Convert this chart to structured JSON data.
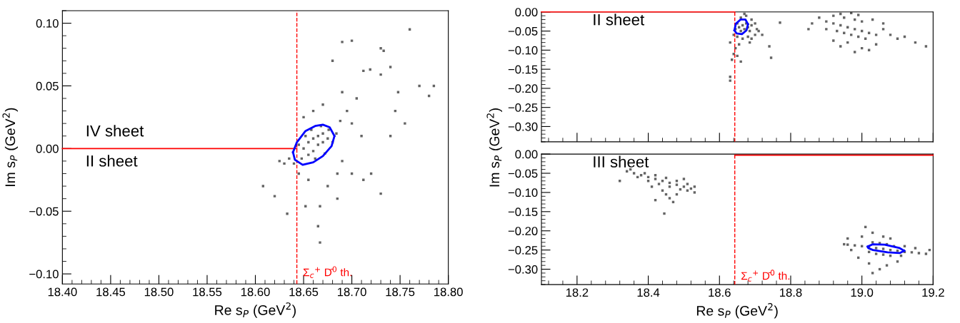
{
  "chart_data": [
    {
      "type": "scatter",
      "xlabel": "Re s$_{P}$ (GeV$^{2}$)",
      "ylabel": "Im s$_{P}$ (GeV$^{2}$)",
      "xlim": [
        18.4,
        18.8
      ],
      "ylim": [
        -0.108,
        0.11
      ],
      "xticks": [
        {
          "value": 18.4,
          "label": "18.40"
        },
        {
          "value": 18.45,
          "label": "18.45"
        },
        {
          "value": 18.5,
          "label": "18.50"
        },
        {
          "value": 18.55,
          "label": "18.55"
        },
        {
          "value": 18.6,
          "label": "18.60"
        },
        {
          "value": 18.65,
          "label": "18.65"
        },
        {
          "value": 18.7,
          "label": "18.70"
        },
        {
          "value": 18.75,
          "label": "18.75"
        },
        {
          "value": 18.8,
          "label": "18.80"
        }
      ],
      "yticks": [
        {
          "value": -0.1,
          "label": "−0.10"
        },
        {
          "value": -0.05,
          "label": "−0.05"
        },
        {
          "value": 0.0,
          "label": "0.00"
        },
        {
          "value": 0.05,
          "label": "0.05"
        },
        {
          "value": 0.1,
          "label": "0.10"
        }
      ],
      "ref_lines": [
        {
          "axis": "x",
          "value": 18.643,
          "label": "Σ$_{c}$$^{+}$ D̄$^{0}$ th.",
          "color": "#ff0000",
          "line_style": "dashed"
        }
      ],
      "annotations": [
        "IV sheet",
        "II sheet"
      ],
      "series": [
        {
          "marker": "square",
          "color": "#646464",
          "x": [
            18.65,
            18.655,
            18.66,
            18.665,
            18.67,
            18.655,
            18.66,
            18.665,
            18.67,
            18.675,
            18.648,
            18.652,
            18.658,
            18.668,
            18.676,
            18.68,
            18.645,
            18.662,
            18.672,
            18.684,
            18.64,
            18.635,
            18.688,
            18.695,
            18.7,
            18.69,
            18.685,
            18.66,
            18.67,
            18.65,
            18.645,
            18.655,
            18.675,
            18.705,
            18.71,
            18.7,
            18.63,
            18.625,
            18.608,
            18.62,
            18.633,
            18.652,
            18.667,
            18.685,
            18.712,
            18.72,
            18.73,
            18.665,
            18.667,
            18.69,
            18.712,
            18.719,
            18.73,
            18.74,
            18.76,
            18.748,
            18.77,
            18.785,
            18.78,
            18.69,
            18.7,
            18.73,
            18.733,
            18.68,
            18.745,
            18.755,
            18.74
          ],
          "values": [
            0.0,
            0.005,
            0.008,
            0.01,
            0.012,
            -0.005,
            -0.002,
            0.003,
            0.005,
            0.008,
            -0.008,
            0.01,
            0.015,
            0.018,
            0.015,
            0.005,
            0.003,
            -0.008,
            -0.004,
            0.012,
            -0.012,
            -0.008,
            0.022,
            0.03,
            0.02,
            -0.01,
            -0.02,
            0.03,
            0.035,
            0.025,
            -0.02,
            -0.025,
            -0.03,
            0.04,
            0.01,
            -0.02,
            -0.012,
            -0.01,
            -0.03,
            -0.038,
            -0.052,
            -0.046,
            -0.046,
            -0.04,
            -0.025,
            -0.02,
            -0.036,
            -0.062,
            -0.075,
            0.045,
            0.062,
            0.063,
            0.059,
            0.065,
            0.095,
            0.045,
            0.05,
            0.05,
            0.042,
            0.085,
            0.086,
            0.08,
            0.078,
            0.07,
            0.03,
            0.02,
            0.01
          ]
        },
        {
          "type": "line",
          "color": "#ff0000",
          "x": [
            18.4,
            18.643
          ],
          "values": [
            0.0,
            0.0
          ]
        },
        {
          "type": "line",
          "color": "#0000ff",
          "x": [
            18.639,
            18.643,
            18.652,
            18.662,
            18.67,
            18.677,
            18.682
          ],
          "values": [
            -0.003,
            0.005,
            0.014,
            0.018,
            0.019,
            0.017,
            0.01
          ]
        },
        {
          "type": "line",
          "color": "#0000ff",
          "x": [
            18.639,
            18.641,
            18.649,
            18.66,
            18.67,
            18.679,
            18.682
          ],
          "values": [
            -0.003,
            -0.009,
            -0.013,
            -0.011,
            -0.006,
            0.002,
            0.01
          ]
        }
      ]
    },
    {
      "type": "scatter",
      "tick_labels": "y",
      "xlim": [
        18.1,
        19.2
      ],
      "ylim": [
        -0.34,
        0.0
      ],
      "yticks": [
        {
          "value": -0.3,
          "label": "−0.30"
        },
        {
          "value": -0.25,
          "label": "−0.25"
        },
        {
          "value": -0.2,
          "label": "−0.20"
        },
        {
          "value": -0.15,
          "label": "−0.15"
        },
        {
          "value": -0.1,
          "label": "−0.10"
        },
        {
          "value": -0.05,
          "label": "−0.05"
        },
        {
          "value": 0.0,
          "label": "0.00"
        }
      ],
      "xticks": [
        {
          "value": 18.2,
          "label": null
        },
        {
          "value": 18.4,
          "label": null
        },
        {
          "value": 18.6,
          "label": null
        },
        {
          "value": 18.8,
          "label": null
        },
        {
          "value": 19.0,
          "label": null
        },
        {
          "value": 19.2,
          "label": null
        }
      ],
      "ref_lines": [
        {
          "axis": "x",
          "value": 18.643,
          "color": "#ff0000",
          "line_style": "dashed"
        }
      ],
      "annotations": [
        "II sheet"
      ],
      "series": [
        {
          "marker": "square",
          "color": "#646464",
          "x": [
            18.655,
            18.665,
            18.67,
            18.66,
            18.675,
            18.65,
            18.68,
            18.685,
            18.69,
            18.645,
            18.66,
            18.675,
            18.69,
            18.7,
            18.705,
            18.65,
            18.665,
            18.68,
            18.64,
            18.655,
            18.645,
            18.64,
            18.635,
            18.65,
            18.63,
            18.63,
            18.66,
            18.72,
            18.74,
            18.745,
            18.63,
            18.685,
            18.7,
            18.71,
            18.67,
            18.69,
            18.9,
            18.92,
            18.94,
            18.96,
            18.98,
            19.0,
            19.02,
            19.04,
            18.93,
            18.95,
            18.97,
            18.99,
            19.01,
            18.92,
            18.95,
            18.98,
            19.0,
            18.94,
            18.97,
            18.9,
            18.88,
            18.86,
            18.85,
            19.06,
            19.08,
            19.1,
            19.12,
            19.15,
            19.18,
            19.04,
            19.0,
            18.96,
            18.98,
            19.02,
            18.92,
            18.94,
            18.77,
            19.06,
            19.03,
            18.99
          ],
          "values": [
            -0.04,
            -0.035,
            -0.045,
            -0.05,
            -0.03,
            -0.03,
            -0.04,
            -0.05,
            -0.035,
            -0.045,
            -0.015,
            -0.01,
            -0.02,
            -0.03,
            -0.045,
            -0.065,
            -0.07,
            -0.065,
            -0.06,
            -0.085,
            -0.095,
            -0.11,
            -0.125,
            -0.115,
            -0.17,
            -0.18,
            -0.13,
            -0.06,
            -0.09,
            -0.12,
            -0.08,
            -0.08,
            -0.06,
            -0.05,
            -0.005,
            -0.07,
            -0.025,
            -0.03,
            -0.035,
            -0.04,
            -0.045,
            -0.05,
            -0.055,
            -0.06,
            -0.05,
            -0.055,
            -0.06,
            -0.065,
            -0.07,
            -0.01,
            -0.015,
            -0.02,
            -0.025,
            -0.005,
            -0.003,
            -0.045,
            -0.015,
            -0.03,
            -0.045,
            -0.045,
            -0.06,
            -0.07,
            -0.065,
            -0.08,
            -0.09,
            -0.085,
            -0.095,
            -0.08,
            -0.105,
            -0.1,
            -0.075,
            -0.09,
            -0.028,
            -0.03,
            -0.02,
            -0.008
          ]
        },
        {
          "type": "line",
          "color": "#ff0000",
          "x": [
            18.1,
            18.643
          ],
          "values": [
            0.0,
            0.0
          ]
        },
        {
          "type": "line",
          "color": "#0000ff",
          "x": [
            18.642,
            18.646,
            18.659,
            18.673,
            18.68
          ],
          "values": [
            -0.048,
            -0.031,
            -0.02,
            -0.02,
            -0.032
          ]
        },
        {
          "type": "line",
          "color": "#0000ff",
          "x": [
            18.642,
            18.648,
            18.663,
            18.676,
            18.68
          ],
          "values": [
            -0.048,
            -0.056,
            -0.058,
            -0.048,
            -0.032
          ]
        }
      ]
    },
    {
      "type": "scatter",
      "xlabel": "Re s$_{P}$ (GeV$^{2}$)",
      "ylabel": "Im s$_{P}$ (GeV$^{2}$)",
      "xlim": [
        18.1,
        19.2
      ],
      "ylim": [
        -0.34,
        0.0
      ],
      "yticks": [
        {
          "value": -0.3,
          "label": "−0.30"
        },
        {
          "value": -0.25,
          "label": "−0.25"
        },
        {
          "value": -0.2,
          "label": "−0.20"
        },
        {
          "value": -0.15,
          "label": "−0.15"
        },
        {
          "value": -0.1,
          "label": "−0.10"
        },
        {
          "value": -0.05,
          "label": "−0.05"
        },
        {
          "value": 0.0,
          "label": "0.00"
        }
      ],
      "xticks": [
        {
          "value": 18.2,
          "label": "18.2"
        },
        {
          "value": 18.4,
          "label": "18.4"
        },
        {
          "value": 18.6,
          "label": "18.6"
        },
        {
          "value": 18.8,
          "label": "18.8"
        },
        {
          "value": 19.0,
          "label": "19.0"
        },
        {
          "value": 19.2,
          "label": "19.2"
        }
      ],
      "ref_lines": [
        {
          "axis": "x",
          "value": 18.643,
          "label": "Σ$_{c}$$^{+}$ D̄$^{0}$ th.",
          "color": "#ff0000",
          "line_style": "dashed"
        }
      ],
      "annotations": [
        "III sheet"
      ],
      "series": [
        {
          "marker": "square",
          "color": "#646464",
          "x": [
            18.34,
            18.36,
            18.38,
            18.4,
            18.42,
            18.44,
            18.46,
            18.48,
            18.5,
            18.52,
            18.37,
            18.4,
            18.43,
            18.46,
            18.49,
            18.51,
            18.39,
            18.42,
            18.45,
            18.48,
            18.51,
            18.53,
            18.53,
            18.44,
            18.45,
            18.46,
            18.42,
            18.445,
            18.47,
            18.35,
            18.32,
            18.5,
            18.41,
            18.48,
            19.0,
            19.02,
            19.04,
            19.06,
            19.08,
            19.1,
            19.12,
            19.14,
            19.16,
            19.18,
            18.98,
            18.96,
            18.95,
            19.03,
            19.05,
            19.07,
            19.09,
            19.02,
            19.04,
            19.06,
            19.08,
            19.11,
            19.0,
            19.03,
            19.01,
            19.06,
            19.08,
            18.99,
            19.02,
            19.05,
            19.03,
            19.07,
            19.12,
            19.15,
            19.19,
            18.97,
            18.96,
            19.1
          ],
          "values": [
            -0.045,
            -0.05,
            -0.055,
            -0.06,
            -0.065,
            -0.07,
            -0.075,
            -0.08,
            -0.085,
            -0.09,
            -0.06,
            -0.07,
            -0.078,
            -0.085,
            -0.092,
            -0.095,
            -0.05,
            -0.055,
            -0.062,
            -0.07,
            -0.078,
            -0.085,
            -0.1,
            -0.095,
            -0.105,
            -0.115,
            -0.12,
            -0.155,
            -0.125,
            -0.04,
            -0.07,
            -0.065,
            -0.085,
            -0.105,
            -0.24,
            -0.242,
            -0.245,
            -0.247,
            -0.25,
            -0.252,
            -0.255,
            -0.256,
            -0.258,
            -0.26,
            -0.238,
            -0.236,
            -0.235,
            -0.23,
            -0.232,
            -0.235,
            -0.24,
            -0.255,
            -0.26,
            -0.262,
            -0.265,
            -0.265,
            -0.215,
            -0.205,
            -0.19,
            -0.215,
            -0.22,
            -0.27,
            -0.285,
            -0.3,
            -0.31,
            -0.29,
            -0.24,
            -0.245,
            -0.25,
            -0.25,
            -0.22,
            -0.28
          ]
        },
        {
          "type": "line",
          "color": "#ff0000",
          "x": [
            18.643,
            19.2
          ],
          "values": [
            -0.003,
            -0.003
          ]
        },
        {
          "type": "line",
          "color": "#0000ff",
          "x": [
            19.016,
            19.031,
            19.064,
            19.106,
            19.119
          ],
          "values": [
            -0.241,
            -0.235,
            -0.236,
            -0.245,
            -0.252
          ]
        },
        {
          "type": "line",
          "color": "#0000ff",
          "x": [
            19.016,
            19.018,
            19.031,
            19.072,
            19.106,
            19.119
          ],
          "values": [
            -0.241,
            -0.245,
            -0.25,
            -0.256,
            -0.258,
            -0.252
          ]
        }
      ]
    }
  ]
}
